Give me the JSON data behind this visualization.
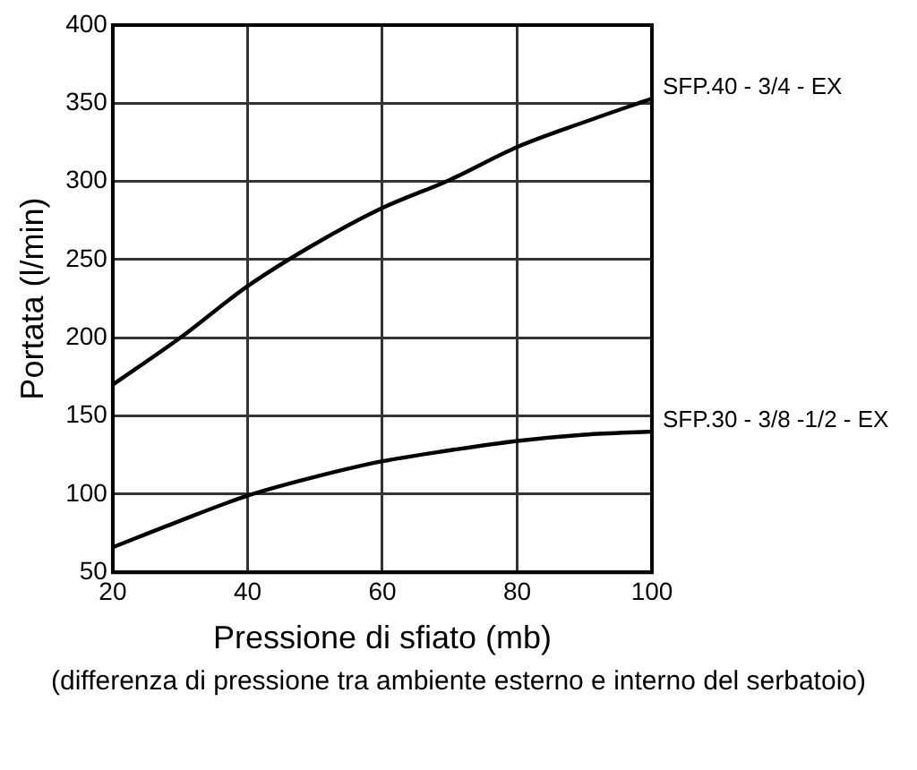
{
  "chart_data": {
    "type": "line",
    "xlabel": "Pressione di sfiato (mb)",
    "ylabel": "Portata (l/min)",
    "annotations": [
      "(differenza di pressione tra ambiente esterno e interno del serbatoio)"
    ],
    "x": [
      20,
      30,
      40,
      50,
      60,
      70,
      80,
      90,
      100
    ],
    "series": [
      {
        "name": "SFP.40 - 3/4 - EX",
        "color": "#000000",
        "values": [
          170,
          200,
          233,
          260,
          283,
          301,
          322,
          338,
          353
        ]
      },
      {
        "name": "SFP.30 - 3/8 -1/2 - EX",
        "color": "#000000",
        "values": [
          66,
          83,
          99,
          111,
          121,
          128,
          134,
          138,
          140
        ]
      }
    ],
    "xlim": [
      20,
      100
    ],
    "xticks": [
      20,
      40,
      60,
      80,
      100
    ],
    "ylim": [
      50,
      400
    ],
    "yticks": [
      50,
      100,
      150,
      200,
      250,
      300,
      350,
      400
    ],
    "grid": true,
    "legend": false,
    "marker": "none",
    "line_style": "solid"
  }
}
